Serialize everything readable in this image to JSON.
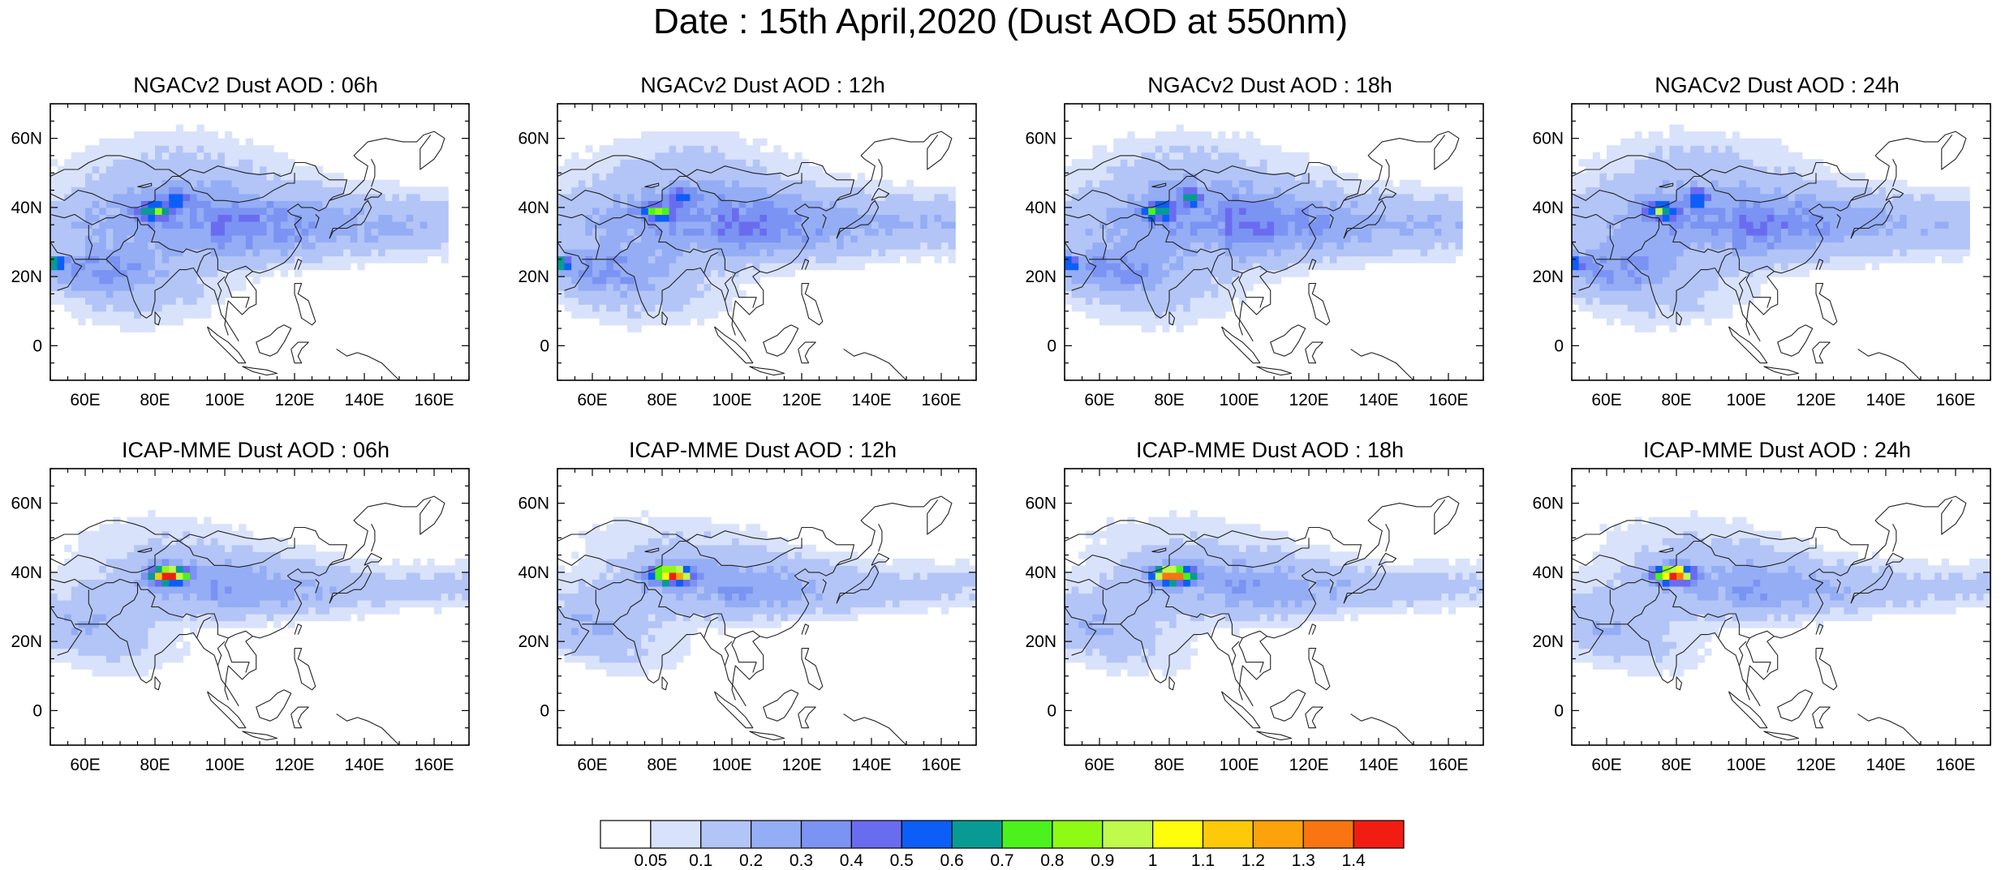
{
  "title": "Date : 15th April,2020 (Dust AOD at 550nm)",
  "panels": [
    {
      "id": "ngac-06",
      "title": "NGACv2 Dust AOD : 06h",
      "model": "NGACv2",
      "hour": "06h"
    },
    {
      "id": "ngac-12",
      "title": "NGACv2 Dust AOD : 12h",
      "model": "NGACv2",
      "hour": "12h"
    },
    {
      "id": "ngac-18",
      "title": "NGACv2 Dust AOD : 18h",
      "model": "NGACv2",
      "hour": "18h"
    },
    {
      "id": "ngac-24",
      "title": "NGACv2 Dust AOD : 24h",
      "model": "NGACv2",
      "hour": "24h"
    },
    {
      "id": "icap-06",
      "title": "ICAP-MME Dust AOD : 06h",
      "model": "ICAP-MME",
      "hour": "06h"
    },
    {
      "id": "icap-12",
      "title": "ICAP-MME Dust AOD : 12h",
      "model": "ICAP-MME",
      "hour": "12h"
    },
    {
      "id": "icap-18",
      "title": "ICAP-MME Dust AOD : 18h",
      "model": "ICAP-MME",
      "hour": "18h"
    },
    {
      "id": "icap-24",
      "title": "ICAP-MME Dust AOD : 24h",
      "model": "ICAP-MME",
      "hour": "24h"
    }
  ],
  "map_extent": {
    "lon": [
      50,
      170
    ],
    "lat": [
      -10,
      70
    ]
  },
  "x_ticks": [
    {
      "value": 60,
      "label": "60E"
    },
    {
      "value": 80,
      "label": "80E"
    },
    {
      "value": 100,
      "label": "100E"
    },
    {
      "value": 120,
      "label": "120E"
    },
    {
      "value": 140,
      "label": "140E"
    },
    {
      "value": 160,
      "label": "160E"
    }
  ],
  "y_ticks": [
    {
      "value": 0,
      "label": "0"
    },
    {
      "value": 20,
      "label": "20N"
    },
    {
      "value": 40,
      "label": "40N"
    },
    {
      "value": 60,
      "label": "60N"
    }
  ],
  "colorbar": {
    "labels": [
      "0.05",
      "0.1",
      "0.2",
      "0.3",
      "0.4",
      "0.5",
      "0.6",
      "0.7",
      "0.8",
      "0.9",
      "1",
      "1.1",
      "1.2",
      "1.3",
      "1.4"
    ],
    "colors": [
      "#ffffff",
      "#d9e2fb",
      "#b3c4f7",
      "#94adf5",
      "#7b93f2",
      "#6a6cf0",
      "#0c5ef7",
      "#089b94",
      "#4cf21c",
      "#8ffb14",
      "#c0fa4c",
      "#fefd0b",
      "#fec908",
      "#fca20b",
      "#f97511",
      "#f11d12"
    ]
  },
  "legend_position": "bottom"
}
